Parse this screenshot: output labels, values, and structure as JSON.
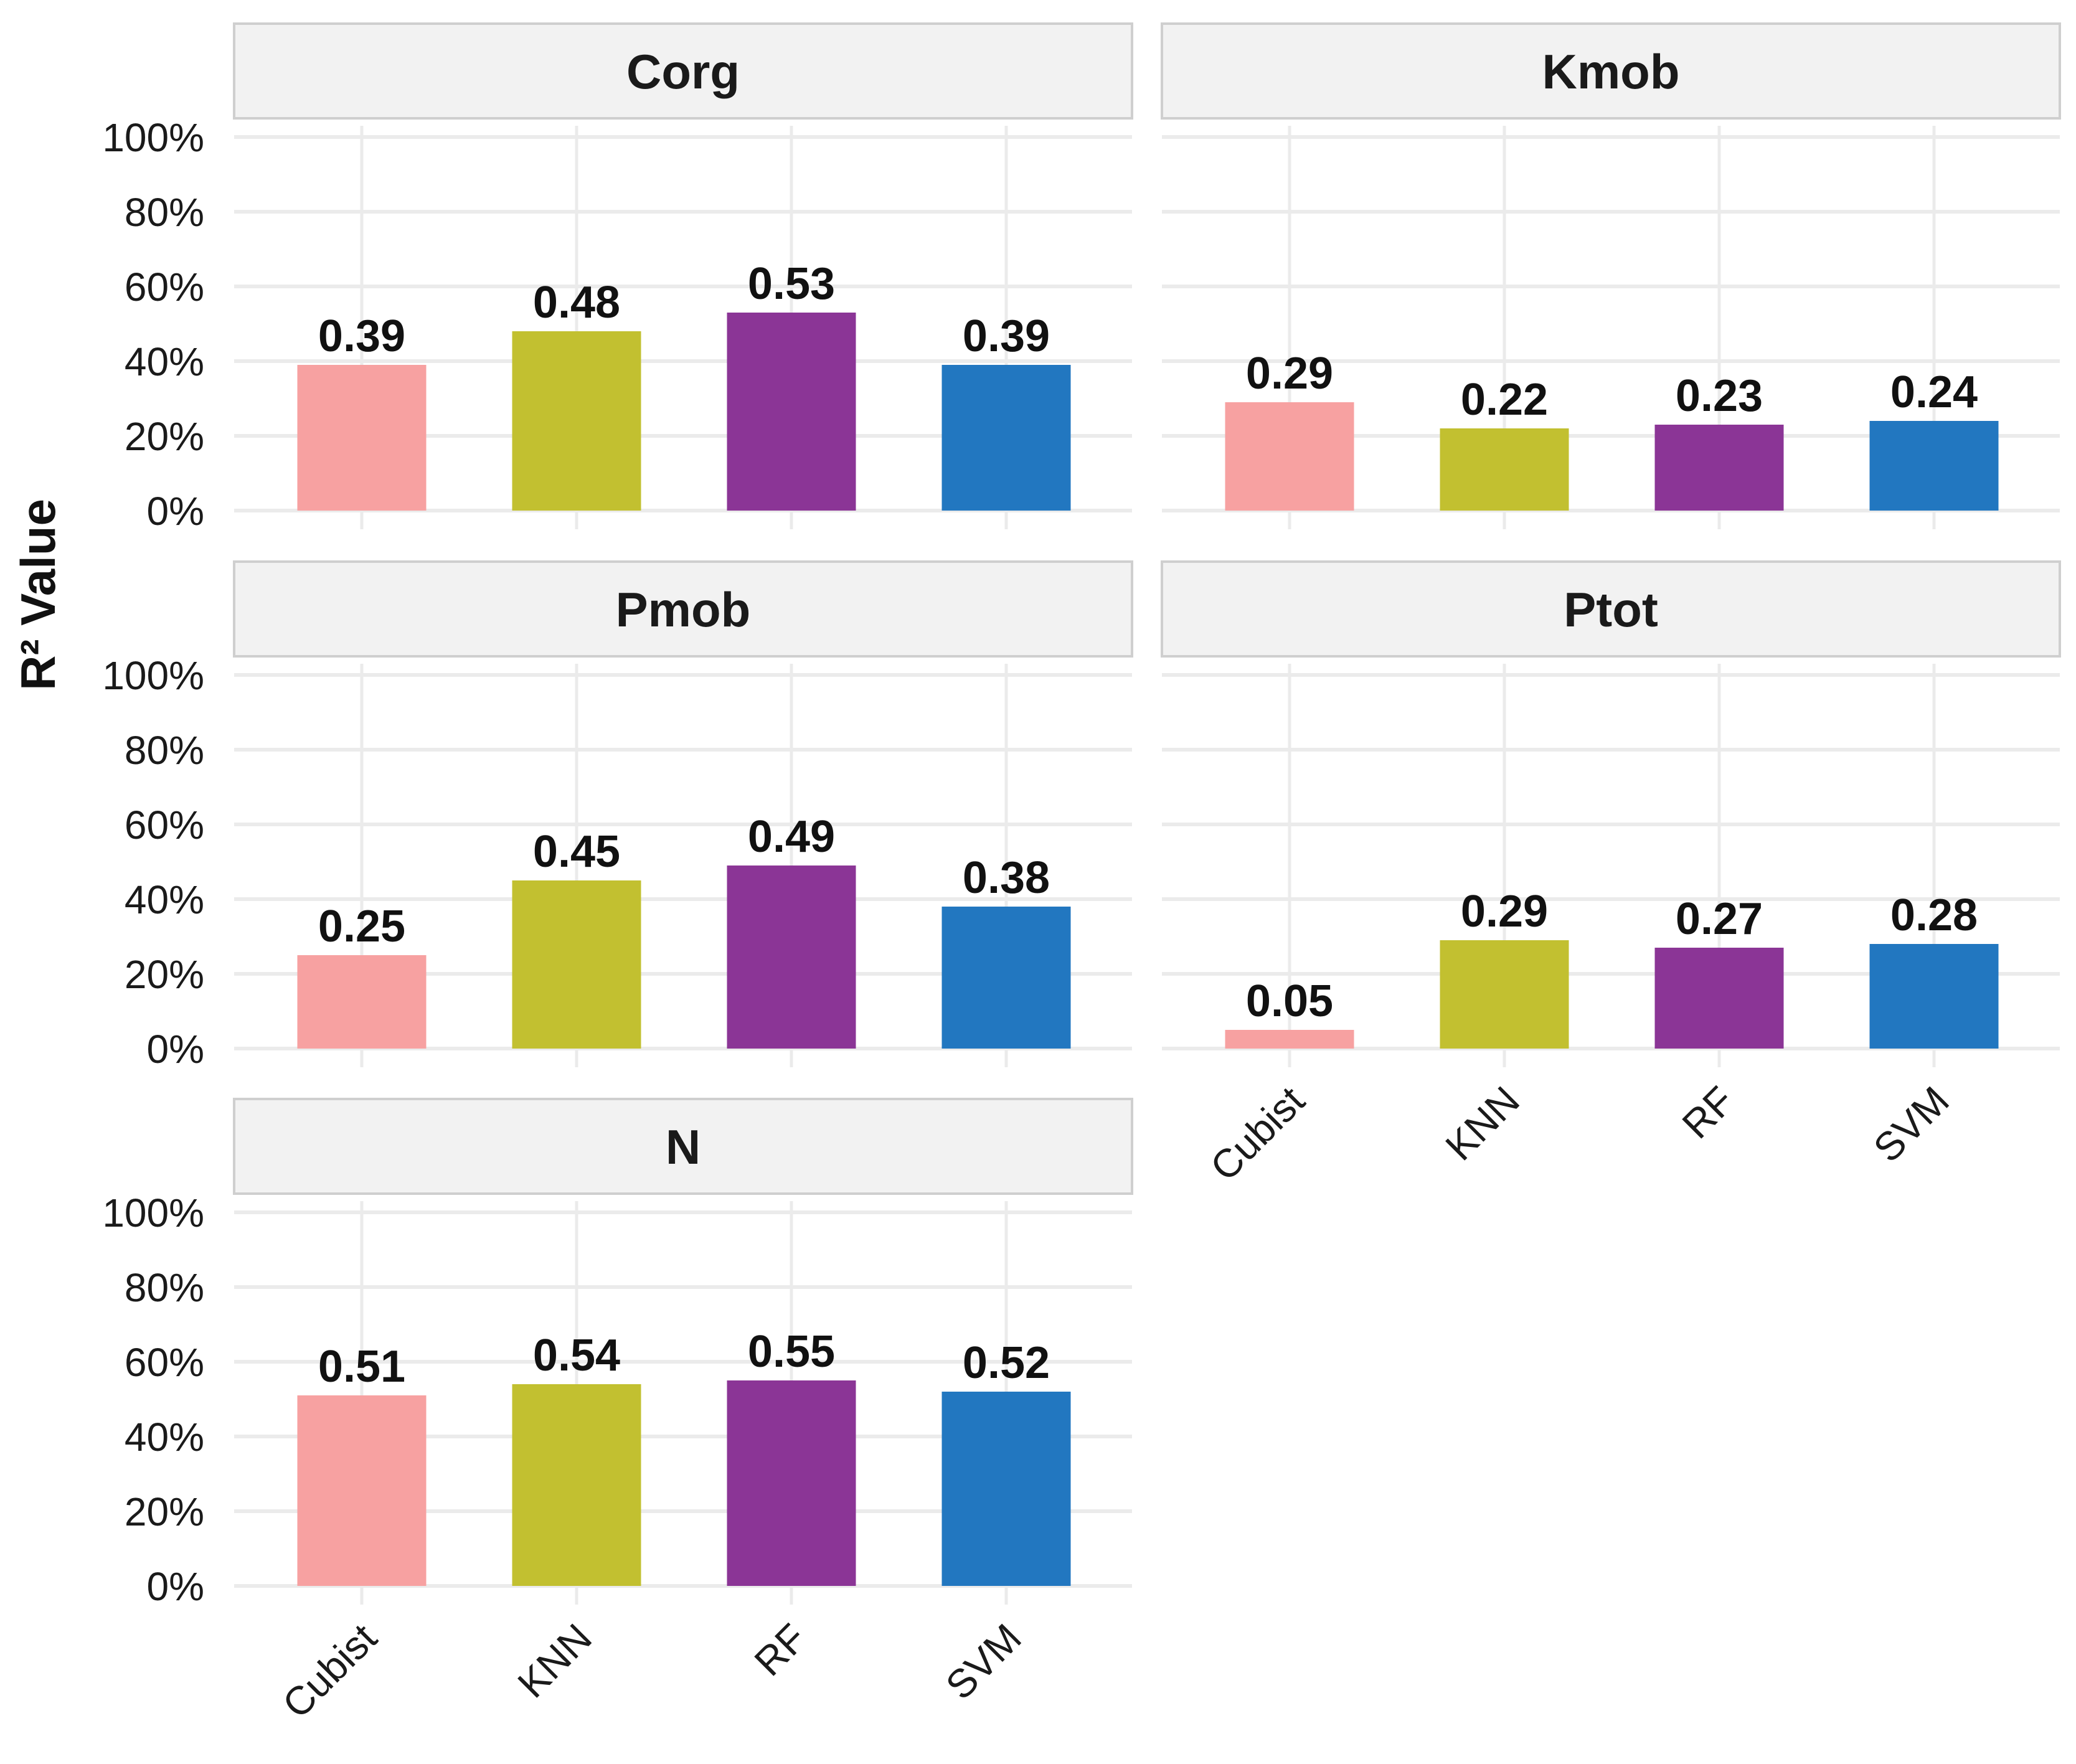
{
  "chart_data": {
    "type": "bar",
    "ylabel": "R² Value",
    "xlabel": "",
    "ylim": [
      0,
      100
    ],
    "y_ticks": [
      "0%",
      "20%",
      "40%",
      "60%",
      "80%",
      "100%"
    ],
    "y_tick_values": [
      0,
      20,
      40,
      60,
      80,
      100
    ],
    "categories": [
      "Cubist",
      "KNN",
      "RF",
      "SVM"
    ],
    "colors": {
      "Cubist": "#f7a1a1",
      "KNN": "#c2c030",
      "RF": "#8b3596",
      "SVM": "#2277c0"
    },
    "grid": true,
    "legend": "none",
    "panels": [
      {
        "title": "Corg",
        "values": [
          0.39,
          0.48,
          0.53,
          0.39
        ],
        "labels": [
          "0.39",
          "0.48",
          "0.53",
          "0.39"
        ]
      },
      {
        "title": "Kmob",
        "values": [
          0.29,
          0.22,
          0.23,
          0.24
        ],
        "labels": [
          "0.29",
          "0.22",
          "0.23",
          "0.24"
        ]
      },
      {
        "title": "Pmob",
        "values": [
          0.25,
          0.45,
          0.49,
          0.38
        ],
        "labels": [
          "0.25",
          "0.45",
          "0.49",
          "0.38"
        ]
      },
      {
        "title": "Ptot",
        "values": [
          0.05,
          0.29,
          0.27,
          0.28
        ],
        "labels": [
          "0.05",
          "0.29",
          "0.27",
          "0.28"
        ]
      },
      {
        "title": "N",
        "values": [
          0.51,
          0.54,
          0.55,
          0.52
        ],
        "labels": [
          "0.51",
          "0.54",
          "0.55",
          "0.52"
        ]
      }
    ]
  }
}
